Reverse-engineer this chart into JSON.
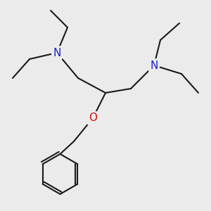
{
  "bg_color": "#ebebeb",
  "bond_color": "#1a1a1a",
  "N_color": "#2020cc",
  "O_color": "#cc1111",
  "font_size": 11,
  "bond_width": 1.5,
  "fig_w": 3.0,
  "fig_h": 3.0,
  "dpi": 100,
  "xlim": [
    0,
    1
  ],
  "ylim": [
    0,
    1
  ],
  "CC": [
    0.5,
    0.56
  ],
  "CL": [
    0.37,
    0.63
  ],
  "NL": [
    0.27,
    0.75
  ],
  "EL1a": [
    0.14,
    0.72
  ],
  "EL1b": [
    0.06,
    0.63
  ],
  "EL2a": [
    0.32,
    0.87
  ],
  "EL2b": [
    0.24,
    0.95
  ],
  "CR": [
    0.62,
    0.58
  ],
  "NR": [
    0.73,
    0.69
  ],
  "ER1a": [
    0.86,
    0.65
  ],
  "ER1b": [
    0.94,
    0.56
  ],
  "ER2a": [
    0.76,
    0.81
  ],
  "ER2b": [
    0.85,
    0.89
  ],
  "CO": [
    0.44,
    0.44
  ],
  "CB": [
    0.35,
    0.33
  ],
  "bcx": 0.285,
  "bcy": 0.175,
  "br": 0.095
}
